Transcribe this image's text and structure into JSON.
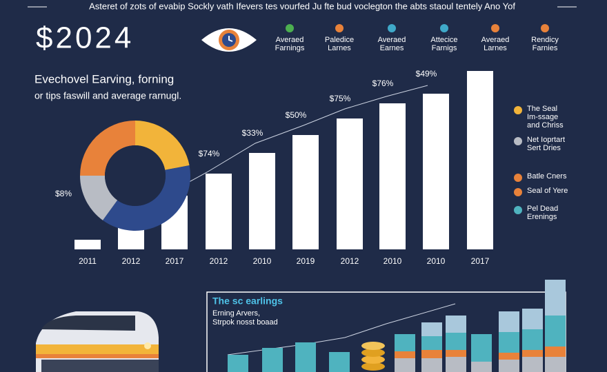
{
  "header": {
    "banner": "Asteret of zots of evabip Sockly vath Ifevers tes vourfed Ju fte bud voclegton the abts staoul tentely Ano Yof",
    "title": "$2024",
    "icons": [
      {
        "lines": [
          "Averaed",
          "Farnings"
        ],
        "color": "#4caf50"
      },
      {
        "lines": [
          "Paledice",
          "Larnes"
        ],
        "color": "#e8823a"
      },
      {
        "lines": [
          "Averaed",
          "Earnes"
        ],
        "color": "#3fa9c9"
      },
      {
        "lines": [
          "Attecice",
          "Farnigs"
        ],
        "color": "#3fa9c9"
      },
      {
        "lines": [
          "Averaed",
          "Larnes"
        ],
        "color": "#e8823a"
      },
      {
        "lines": [
          "Rendicy",
          "Farnies"
        ],
        "color": "#e8823a"
      }
    ]
  },
  "chart_data": [
    {
      "type": "bar",
      "title": "Evechovel Earving, forning",
      "subtitle": "or tips faswill and average rarnugl.",
      "categories": [
        "2011",
        "2012",
        "2017",
        "2012",
        "2010",
        "2019",
        "2012",
        "2010",
        "2010",
        "2017"
      ],
      "values": [
        14,
        40,
        78,
        110,
        140,
        166,
        190,
        212,
        226,
        259
      ],
      "value_labels": [
        "$8%",
        null,
        null,
        "$74%",
        "$33%",
        "$50%",
        "$75%",
        "$76%",
        "$49%",
        null
      ],
      "color": "#ffffff",
      "ylim": [
        0,
        260
      ]
    },
    {
      "type": "pie",
      "values": [
        22,
        38,
        15,
        25
      ],
      "colors": [
        "#f2b43a",
        "#2e4a8c",
        "#b8bcc4",
        "#e8823a"
      ]
    },
    {
      "type": "stacked-bar",
      "title": "The sc earlings",
      "subtitle": [
        "Erning Arvers,",
        "Strpok nosst boaad"
      ],
      "categories": [
        null,
        null,
        null,
        null,
        null,
        null,
        null,
        null,
        null,
        null,
        null
      ],
      "ylim": [
        0,
        140
      ],
      "series": [
        {
          "color": "#b8bcc4",
          "values": [
            0,
            0,
            0,
            0,
            20,
            20,
            22,
            15,
            18,
            22,
            22
          ]
        },
        {
          "color": "#e8823a",
          "values": [
            0,
            0,
            0,
            0,
            10,
            12,
            10,
            0,
            10,
            10,
            15
          ]
        },
        {
          "color": "#4fb3bf",
          "values": [
            25,
            35,
            43,
            29,
            25,
            20,
            25,
            40,
            30,
            30,
            45
          ]
        },
        {
          "color": "#a9c8dc",
          "values": [
            0,
            0,
            0,
            0,
            0,
            20,
            25,
            0,
            30,
            30,
            52
          ]
        }
      ]
    }
  ],
  "legend": [
    {
      "color": "#f2b43a",
      "lines": [
        "The Seal",
        "Im-ssage",
        "and Chriss"
      ]
    },
    {
      "color": "#b8bcc4",
      "lines": [
        "Net Ioprtart",
        "Sert Dries"
      ]
    },
    {
      "color": "#e8823a",
      "lines": [
        "Batle Cners"
      ]
    },
    {
      "color": "#e8823a",
      "lines": [
        "Seal of Yere"
      ]
    },
    {
      "color": "#4fb3bf",
      "lines": [
        "Pel Dead",
        "Erenings"
      ]
    }
  ]
}
